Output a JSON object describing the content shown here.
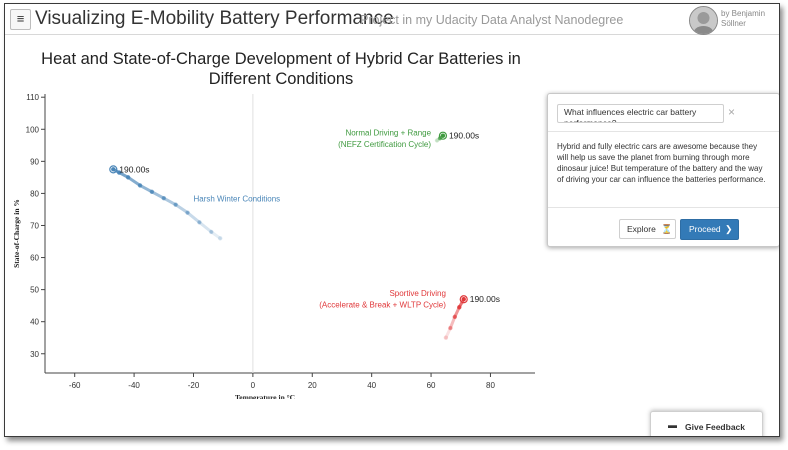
{
  "header": {
    "menu_icon": "hamburger-icon",
    "title": "Visualizing E-Mobility Battery Performance",
    "subtitle": "Project in my Udacity Data Analyst Nanodegree",
    "author": "by Benjamin Söllner"
  },
  "colors": {
    "winter": "#4a86b8",
    "winter_end": "#215a80",
    "normal": "#3f9a3f",
    "sportive": "#e0383a",
    "accent": "#337ab7"
  },
  "chart_data": {
    "type": "scatter",
    "title": "Heat and State-of-Charge Development of Hybrid Car Batteries in Different Conditions",
    "xlabel": "Temperature in °C",
    "ylabel": "State-of-Charge in %",
    "xlim": [
      -70,
      95
    ],
    "ylim": [
      24,
      111
    ],
    "xticks": [
      -60,
      -40,
      -20,
      0,
      20,
      40,
      60,
      80
    ],
    "yticks": [
      30,
      40,
      50,
      60,
      70,
      80,
      90,
      100,
      110
    ],
    "grid": false,
    "series": [
      {
        "name": "Harsh Winter Conditions",
        "color": "#4a86b8",
        "x": [
          -11,
          -14,
          -18,
          -22,
          -26,
          -30,
          -34,
          -38,
          -42,
          -45,
          -47
        ],
        "y": [
          66,
          68,
          71,
          74,
          76.5,
          78.5,
          80.5,
          82.5,
          85,
          86.5,
          87.5
        ],
        "end_label": "190.00s"
      },
      {
        "name": "Normal Driving + Range (NEFZ Certification Cycle)",
        "color": "#3f9a3f",
        "x": [
          62,
          63,
          64
        ],
        "y": [
          96.5,
          97.2,
          98
        ],
        "end_label": "190.00s"
      },
      {
        "name": "Sportive Driving (Accelerate & Break + WLTP Cycle)",
        "color": "#e0383a",
        "x": [
          65,
          66.5,
          68,
          69.5,
          71
        ],
        "y": [
          35,
          38,
          41.5,
          44.5,
          47
        ],
        "end_label": "190.00s"
      }
    ],
    "annotations": [
      {
        "text": "Harsh Winter Conditions",
        "series": 0
      },
      {
        "text": "Normal Driving + Range",
        "series": 1
      },
      {
        "text": "(NEFZ Certification Cycle)",
        "series": 1
      },
      {
        "text": "Sportive Driving",
        "series": 2
      },
      {
        "text": "(Accelerate & Break + WLTP Cycle)",
        "series": 2
      }
    ]
  },
  "panel": {
    "question": "What influences electric car battery performance?",
    "close_icon": "close-icon",
    "body": "Hybrid and fully electric cars are awesome because they will help us save the planet from burning through more dinosaur juice! But temperature of the battery and the way of driving your car can influence the batteries performance.",
    "explore_label": "Explore",
    "explore_icon": "filter-icon",
    "proceed_label": "Proceed",
    "proceed_icon": "chevron-right-icon"
  },
  "feedback": {
    "label": "Give Feedback",
    "icon": "comment-icon"
  }
}
